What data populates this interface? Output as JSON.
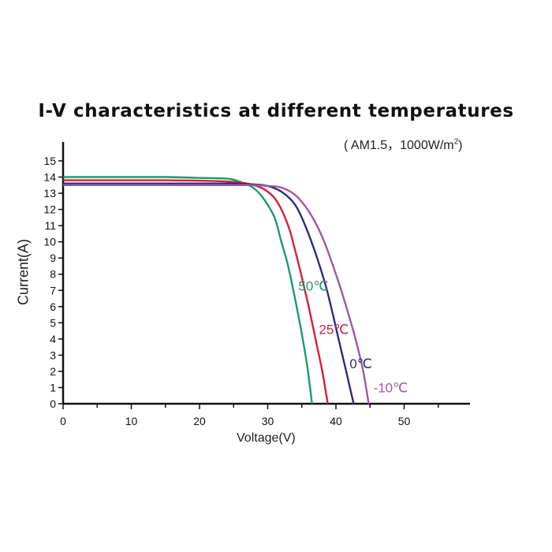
{
  "chart_data": {
    "type": "line",
    "title": "I-V characteristics at different temperatures",
    "subtitle_prefix": "( AM1.5，1000W/m",
    "subtitle_sup": "2",
    "subtitle_suffix": ")",
    "xlabel": "Voltage(V)",
    "ylabel": "Current(A)",
    "xlim": [
      0,
      60
    ],
    "ylim": [
      0,
      15
    ],
    "x_ticks": [
      0,
      10,
      20,
      30,
      40,
      50
    ],
    "y_ticks": [
      0,
      1,
      2,
      3,
      4,
      5,
      6,
      7,
      8,
      9,
      10,
      11,
      12,
      13,
      14,
      15
    ],
    "grid": false,
    "legend": "none",
    "series": [
      {
        "name": "50℃",
        "color": "#1e9a6a",
        "points": [
          [
            0,
            14.0
          ],
          [
            5,
            14.0
          ],
          [
            10,
            14.0
          ],
          [
            15,
            14.0
          ],
          [
            20,
            13.95
          ],
          [
            24,
            13.9
          ],
          [
            26,
            13.7
          ],
          [
            28,
            13.3
          ],
          [
            29.5,
            12.6
          ],
          [
            31,
            11.5
          ],
          [
            32,
            10.0
          ],
          [
            33,
            8.5
          ],
          [
            34,
            6.5
          ],
          [
            35,
            4.3
          ],
          [
            35.8,
            2.3
          ],
          [
            36.5,
            0
          ]
        ]
      },
      {
        "name": "25℃",
        "color": "#d4213a",
        "points": [
          [
            0,
            13.8
          ],
          [
            5,
            13.8
          ],
          [
            10,
            13.8
          ],
          [
            15,
            13.8
          ],
          [
            20,
            13.78
          ],
          [
            25,
            13.7
          ],
          [
            28,
            13.5
          ],
          [
            30,
            13.1
          ],
          [
            31.5,
            12.4
          ],
          [
            33,
            11.0
          ],
          [
            34,
            9.5
          ],
          [
            35,
            7.8
          ],
          [
            36,
            6.0
          ],
          [
            37,
            4.0
          ],
          [
            38,
            2.0
          ],
          [
            38.8,
            0
          ]
        ]
      },
      {
        "name": "0℃",
        "color": "#2c2c85",
        "points": [
          [
            0,
            13.6
          ],
          [
            10,
            13.6
          ],
          [
            20,
            13.6
          ],
          [
            25,
            13.6
          ],
          [
            28,
            13.55
          ],
          [
            30,
            13.45
          ],
          [
            32,
            13.1
          ],
          [
            34,
            12.3
          ],
          [
            35.5,
            11.0
          ],
          [
            37,
            9.3
          ],
          [
            38.5,
            7.3
          ],
          [
            39.5,
            5.6
          ],
          [
            40.5,
            3.8
          ],
          [
            41.5,
            2.0
          ],
          [
            42.6,
            0
          ]
        ]
      },
      {
        "name": "-10℃",
        "color": "#a356a6",
        "points": [
          [
            0,
            13.5
          ],
          [
            10,
            13.5
          ],
          [
            20,
            13.5
          ],
          [
            25,
            13.5
          ],
          [
            28,
            13.5
          ],
          [
            30,
            13.45
          ],
          [
            32,
            13.35
          ],
          [
            34,
            12.9
          ],
          [
            36,
            11.9
          ],
          [
            38,
            10.3
          ],
          [
            40,
            8.0
          ],
          [
            41,
            6.7
          ],
          [
            42,
            5.3
          ],
          [
            43,
            3.8
          ],
          [
            44,
            2.0
          ],
          [
            44.8,
            0
          ]
        ]
      }
    ],
    "annotations": [
      {
        "text": "50℃",
        "x": 34.5,
        "y": 7.0,
        "color": "#1e9a6a"
      },
      {
        "text": "25℃",
        "x": 37.5,
        "y": 4.3,
        "color": "#d4213a"
      },
      {
        "text": "0℃",
        "x": 42.0,
        "y": 2.2,
        "color": "#2c2c85"
      },
      {
        "text": "-10℃",
        "x": 45.5,
        "y": 0.7,
        "color": "#a356a6"
      }
    ]
  }
}
